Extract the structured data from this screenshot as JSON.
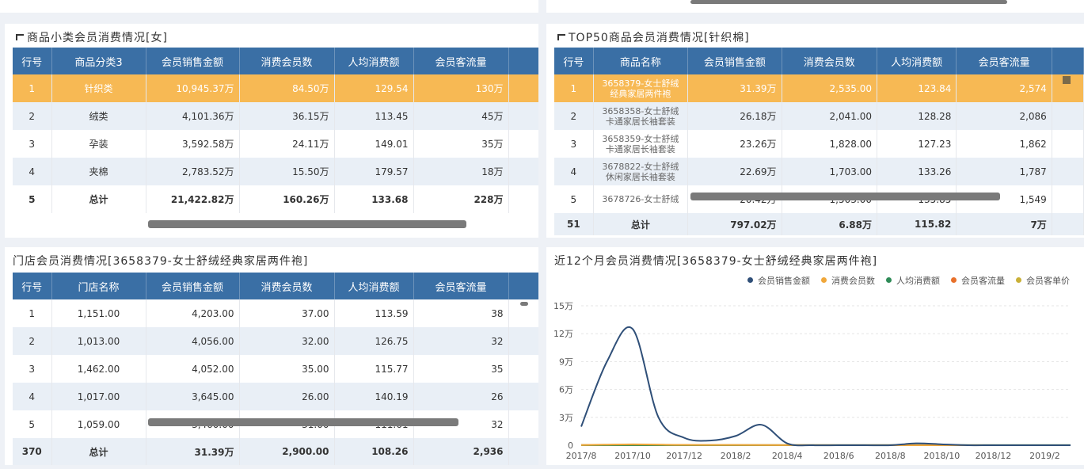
{
  "panel_a": {
    "title": "商品小类会员消费情况[女]",
    "headers": [
      "行号",
      "商品分类3",
      "会员销售金额",
      "消费会员数",
      "人均消费额",
      "会员客流量"
    ],
    "rows": [
      [
        "1",
        "针织类",
        "10,945.37万",
        "84.50万",
        "129.54",
        "130万"
      ],
      [
        "2",
        "绒类",
        "4,101.36万",
        "36.15万",
        "113.45",
        "45万"
      ],
      [
        "3",
        "孕装",
        "3,592.58万",
        "24.11万",
        "149.01",
        "35万"
      ],
      [
        "4",
        "夹棉",
        "2,783.52万",
        "15.50万",
        "179.57",
        "18万"
      ],
      [
        "5",
        "总计",
        "21,422.82万",
        "160.26万",
        "133.68",
        "228万"
      ]
    ]
  },
  "panel_b": {
    "title": "TOP50商品会员消费情况[针织棉]",
    "headers": [
      "行号",
      "商品名称",
      "会员销售金额",
      "消费会员数",
      "人均消费额",
      "会员客流量"
    ],
    "rows": [
      [
        "1",
        "3658379-女士舒绒经典家居两件袍",
        "31.39万",
        "2,535.00",
        "123.84",
        "2,574"
      ],
      [
        "2",
        "3658358-女士舒绒卡通家居长袖套装",
        "26.18万",
        "2,041.00",
        "128.28",
        "2,086"
      ],
      [
        "3",
        "3658359-女士舒绒卡通家居长袖套装",
        "23.26万",
        "1,828.00",
        "127.23",
        "1,862"
      ],
      [
        "4",
        "3678822-女士舒绒休闲家居长袖套装",
        "22.69万",
        "1,703.00",
        "133.26",
        "1,787"
      ],
      [
        "5",
        "3678726-女士舒绒",
        "20.42万",
        "1,503.00",
        "135.85",
        "1,549"
      ]
    ],
    "total": [
      "51",
      "总计",
      "797.02万",
      "6.88万",
      "115.82",
      "7万"
    ]
  },
  "panel_c": {
    "title": "门店会员消费情况[3658379-女士舒绒经典家居两件袍]",
    "headers": [
      "行号",
      "门店名称",
      "会员销售金额",
      "消费会员数",
      "人均消费额",
      "会员客流量"
    ],
    "rows": [
      [
        "1",
        "1,151.00",
        "4,203.00",
        "37.00",
        "113.59",
        "38"
      ],
      [
        "2",
        "1,013.00",
        "4,056.00",
        "32.00",
        "126.75",
        "32"
      ],
      [
        "3",
        "1,462.00",
        "4,052.00",
        "35.00",
        "115.77",
        "35"
      ],
      [
        "4",
        "1,017.00",
        "3,645.00",
        "26.00",
        "140.19",
        "26"
      ],
      [
        "5",
        "1,059.00",
        "3,460.00",
        "31.00",
        "111.61",
        "32"
      ]
    ],
    "total": [
      "370",
      "总计",
      "31.39万",
      "2,900.00",
      "108.26",
      "2,936"
    ]
  },
  "panel_d": {
    "title": "近12个月会员消费情况[3658379-女士舒绒经典家居两件袍]",
    "legend": [
      {
        "name": "会员销售金额",
        "color": "#2f4f78"
      },
      {
        "name": "消费会员数",
        "color": "#f0a73a"
      },
      {
        "name": "人均消费额",
        "color": "#2e8b57"
      },
      {
        "name": "会员客流量",
        "color": "#e8702a"
      },
      {
        "name": "会员客单价",
        "color": "#c9b037"
      }
    ]
  },
  "chart_data": {
    "type": "line",
    "title": "近12个月会员消费情况[3658379-女士舒绒经典家居两件袍]",
    "x_ticks": [
      "2017/8",
      "2017/10",
      "2017/12",
      "2018/2",
      "2018/4",
      "2018/6",
      "2018/8",
      "2018/10",
      "2018/12",
      "2019/2"
    ],
    "y_ticks": [
      "0",
      "3万",
      "6万",
      "9万",
      "12万",
      "15万"
    ],
    "ylim": [
      0,
      150000
    ],
    "series": [
      {
        "name": "会员销售金额",
        "color": "#2f4f78",
        "x": [
          "2017/8",
          "2017/9",
          "2017/10",
          "2017/11",
          "2017/12",
          "2018/1",
          "2018/2",
          "2018/3",
          "2018/4",
          "2018/5",
          "2018/6",
          "2018/7",
          "2018/8",
          "2018/9",
          "2018/10",
          "2018/11",
          "2018/12",
          "2019/1",
          "2019/2",
          "2019/3"
        ],
        "values": [
          20000,
          90000,
          125000,
          30000,
          8000,
          5000,
          10000,
          22000,
          2000,
          0,
          0,
          0,
          0,
          2000,
          1000,
          0,
          0,
          0,
          0,
          0
        ]
      },
      {
        "name": "消费会员数",
        "color": "#f0a73a",
        "x": [
          "2017/8",
          "2017/10",
          "2017/12",
          "2018/2",
          "2018/4",
          "2018/6",
          "2018/8",
          "2018/10",
          "2018/12",
          "2019/3"
        ],
        "values": [
          200,
          1000,
          400,
          300,
          100,
          0,
          0,
          50,
          0,
          0
        ]
      },
      {
        "name": "人均消费额",
        "color": "#2e8b57",
        "x": [
          "2017/8",
          "2019/3"
        ],
        "values": [
          120,
          120
        ]
      },
      {
        "name": "会员客流量",
        "color": "#e8702a",
        "x": [
          "2017/8",
          "2019/3"
        ],
        "values": [
          200,
          0
        ]
      },
      {
        "name": "会员客单价",
        "color": "#c9b037",
        "x": [
          "2017/8",
          "2019/3"
        ],
        "values": [
          110,
          110
        ]
      }
    ]
  }
}
